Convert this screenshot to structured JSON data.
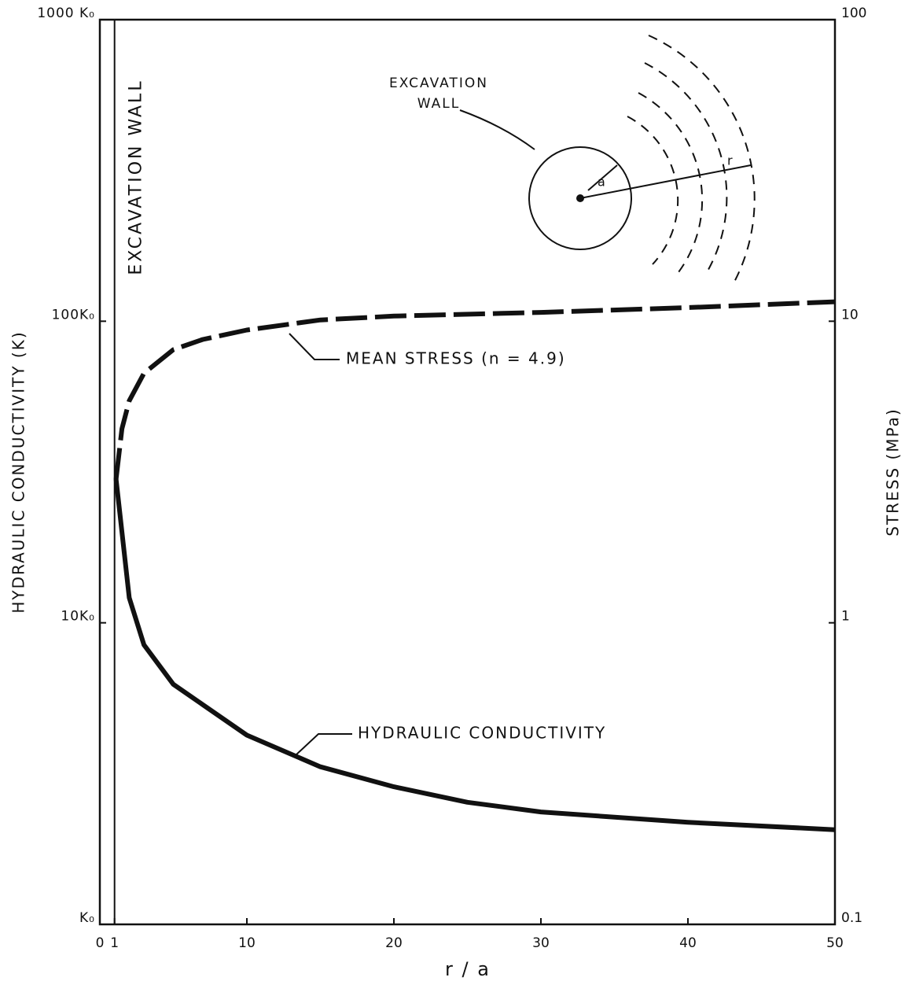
{
  "chart_data": {
    "type": "line",
    "x_label": "r / a",
    "y_label": "HYDRAULIC CONDUCTIVITY (K)",
    "y2_label": "STRESS (MPa)",
    "xlim": [
      0,
      50
    ],
    "xticks": [
      0,
      1,
      10,
      20,
      30,
      40,
      50
    ],
    "ylim": [
      1,
      1000
    ],
    "yscale": "log",
    "yticks": [
      {
        "value": 1,
        "label": "K₀"
      },
      {
        "value": 10,
        "label": "10K₀"
      },
      {
        "value": 100,
        "label": "100K₀"
      },
      {
        "value": 1000,
        "label": "1000 K₀"
      }
    ],
    "y2lim": [
      0.1,
      100
    ],
    "y2scale": "log",
    "y2ticks": [
      0.1,
      1,
      10,
      100
    ],
    "x": [
      1.1,
      2,
      3,
      5,
      10,
      15,
      20,
      25,
      30,
      40,
      50
    ],
    "series": [
      {
        "name": "MEAN STRESS (n = 4.9)",
        "axis": "y2",
        "style": "dashed",
        "color": "#111111",
        "x": [
          1.1,
          1.5,
          2,
          3,
          5,
          7,
          10,
          15,
          20,
          30,
          40,
          50
        ],
        "values": [
          2.99,
          4.4,
          5.45,
          6.72,
          8.05,
          8.7,
          9.35,
          10.1,
          10.4,
          10.7,
          11.1,
          11.6
        ]
      },
      {
        "name": "HYDRAULIC CONDUCTIVITY",
        "axis": "y",
        "style": "solid",
        "color": "#111111",
        "x": [
          1.1,
          2,
          3,
          5,
          10,
          15,
          20,
          25,
          30,
          40,
          50
        ],
        "values": [
          30,
          12.1,
          8.45,
          6.25,
          4.24,
          3.33,
          2.86,
          2.54,
          2.36,
          2.18,
          2.06
        ]
      }
    ],
    "excavation_wall": {
      "label": "EXCAVATION WALL",
      "x": 1
    },
    "inset": {
      "label_lines": [
        "EXCAVATION",
        "WALL"
      ],
      "radius_label": "a",
      "distance_label": "r"
    }
  }
}
